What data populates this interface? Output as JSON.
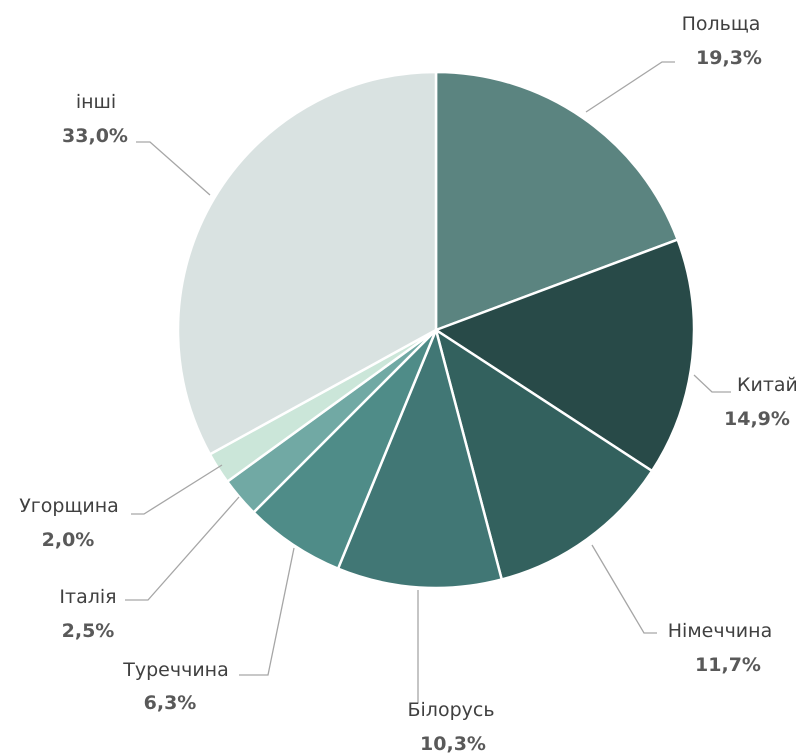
{
  "chart_data": {
    "type": "pie",
    "title": "",
    "legend": "none",
    "slices": [
      {
        "label": "Польща",
        "value": 19.3,
        "value_label": "19,3%",
        "color": "#5b8480"
      },
      {
        "label": "Китай",
        "value": 14.9,
        "value_label": "14,9%",
        "color": "#284a48"
      },
      {
        "label": "Німеччина",
        "value": 11.7,
        "value_label": "11,7%",
        "color": "#33615e"
      },
      {
        "label": "Білорусь",
        "value": 10.3,
        "value_label": "10,3%",
        "color": "#417775"
      },
      {
        "label": "Туреччина",
        "value": 6.3,
        "value_label": "6,3%",
        "color": "#4f8c88"
      },
      {
        "label": "Італія",
        "value": 2.5,
        "value_label": "2,5%",
        "color": "#71a9a4"
      },
      {
        "label": "Угорщина",
        "value": 2.0,
        "value_label": "2,0%",
        "color": "#cbe6d9"
      },
      {
        "label": "інші",
        "value": 33.0,
        "value_label": "33,0%",
        "color": "#d9e2e1"
      }
    ]
  }
}
